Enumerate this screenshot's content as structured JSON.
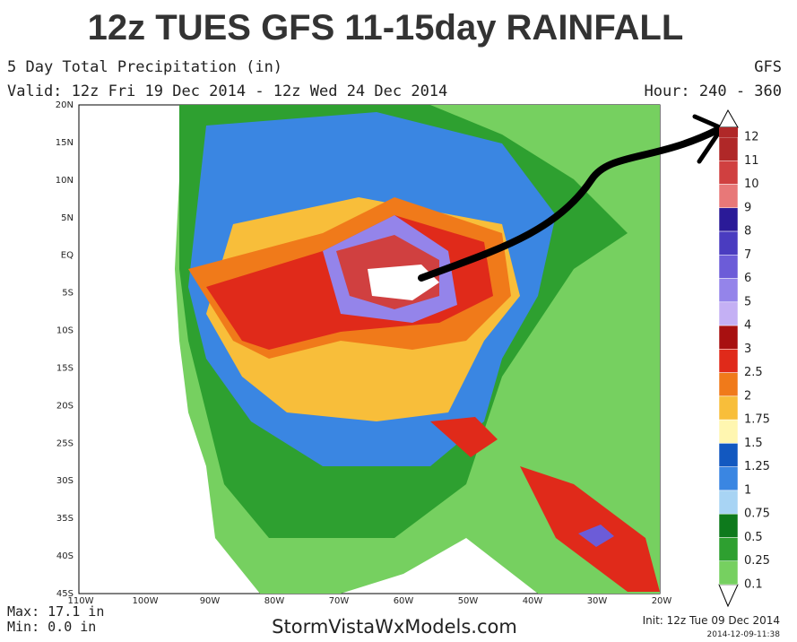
{
  "header": {
    "title": "12z TUES GFS 11-15day RAINFALL"
  },
  "map": {
    "subtitle_left": "5 Day Total Precipitation (in)",
    "subtitle_right": "GFS",
    "valid": "Valid: 12z Fri 19 Dec 2014 - 12z Wed 24 Dec 2014",
    "hour": "Hour: 240 - 360",
    "lat_labels": [
      "20N",
      "15N",
      "10N",
      "5N",
      "EQ",
      "5S",
      "10S",
      "15S",
      "20S",
      "25S",
      "30S",
      "35S",
      "40S",
      "45S"
    ],
    "lon_labels": [
      "110W",
      "100W",
      "90W",
      "80W",
      "70W",
      "60W",
      "50W",
      "40W",
      "30W",
      "20W"
    ]
  },
  "colorbar": {
    "labels": [
      "12",
      "11",
      "10",
      "9",
      "8",
      "7",
      "6",
      "5",
      "4",
      "3",
      "2.5",
      "2",
      "1.75",
      "1.5",
      "1.25",
      "1",
      "0.75",
      "0.5",
      "0.25",
      "0.1"
    ],
    "colors": [
      "#b02828",
      "#d04040",
      "#e87878",
      "#2a1a98",
      "#4a3cc0",
      "#6c5cd8",
      "#9484ea",
      "#c4b0f4",
      "#a81010",
      "#e02a1a",
      "#f07a1a",
      "#f8be3a",
      "#fff6b0",
      "#1258c0",
      "#3a86e2",
      "#a8d4f4",
      "#0e7a1c",
      "#2ea030",
      "#76d060"
    ]
  },
  "footer": {
    "max": "Max: 17.1 in",
    "min": "Min: 0.0 in",
    "source": "StormVistaWxModels.com",
    "init": "Init: 12z Tue 09 Dec 2014",
    "stamp": "2014-12-09-11:38"
  }
}
